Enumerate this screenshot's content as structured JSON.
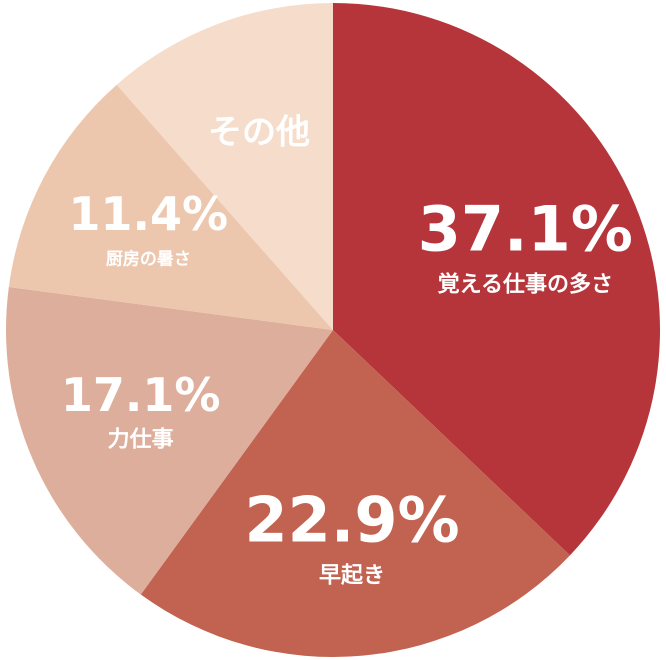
{
  "chart_data": {
    "type": "pie",
    "categories": [
      "覚える仕事の多さ",
      "早起き",
      "力仕事",
      "厨房の暑さ",
      "その他"
    ],
    "values": [
      37.1,
      22.9,
      17.1,
      11.4,
      11.5
    ],
    "value_labels": [
      "37.1%",
      "22.9%",
      "17.1%",
      "11.4%",
      null
    ],
    "colors": [
      "#b6353b",
      "#c26250",
      "#ddae9c",
      "#ecc7ad",
      "#f5dccb"
    ]
  }
}
